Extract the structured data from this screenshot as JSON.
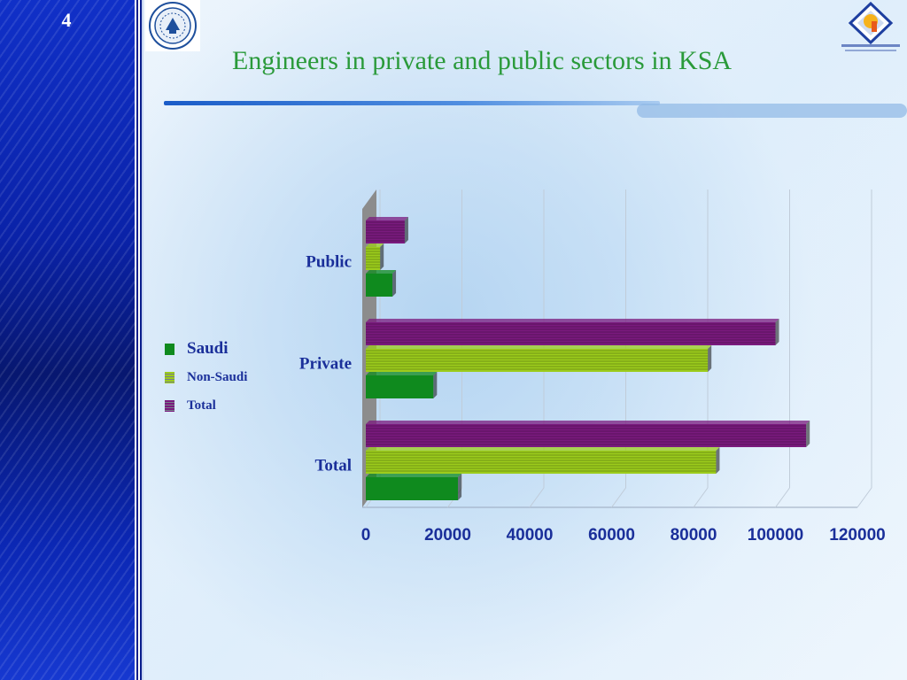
{
  "slide": {
    "number": "4",
    "title": "Engineers in private and public sectors in KSA"
  },
  "logos": {
    "left": "university-seal",
    "right": "saudi-council-of-engineers-logo"
  },
  "colors": {
    "Saudi": "#0f8a1e",
    "Non-Saudi": "#9ccc1c",
    "Total": "#7a1a7e",
    "title": "#2a9a3a",
    "labels": "#1a2f9a"
  },
  "chart_data": {
    "type": "bar",
    "orientation": "horizontal",
    "categories": [
      "Public",
      "Private",
      "Total"
    ],
    "series": [
      {
        "name": "Saudi",
        "values": [
          6500,
          16500,
          22500
        ]
      },
      {
        "name": "Non-Saudi",
        "values": [
          3500,
          83500,
          85500
        ]
      },
      {
        "name": "Total",
        "values": [
          9500,
          100000,
          107500
        ]
      }
    ],
    "ticks": [
      "0",
      "20000",
      "40000",
      "60000",
      "80000",
      "100000",
      "120000"
    ],
    "xlim": [
      0,
      120000
    ],
    "grid": true,
    "legend_position": "left"
  }
}
